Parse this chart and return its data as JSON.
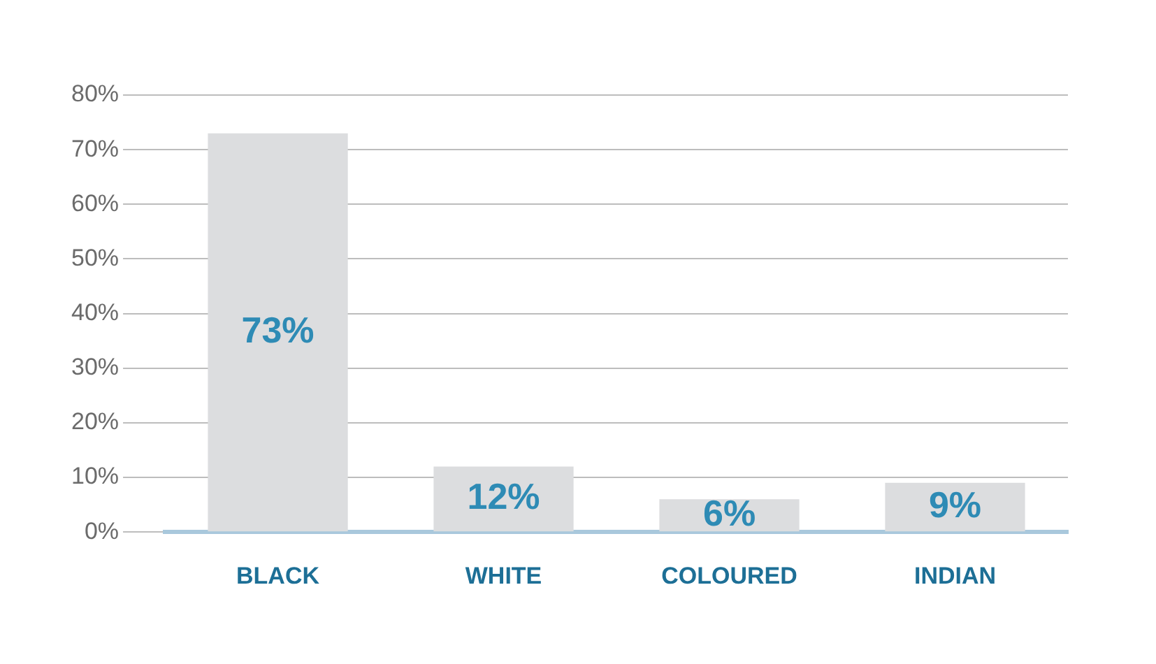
{
  "chart_data": {
    "type": "bar",
    "categories": [
      "BLACK",
      "WHITE",
      "COLOURED",
      "INDIAN"
    ],
    "values": [
      73,
      12,
      6,
      9
    ],
    "color": "#dcdddf",
    "value_labels": [
      "73%",
      "12%",
      "6%",
      "9%"
    ],
    "ylim": [
      0,
      80
    ],
    "yticks": [
      {
        "value": 0,
        "label": "0%"
      },
      {
        "value": 10,
        "label": "10%"
      },
      {
        "value": 20,
        "label": "20%"
      },
      {
        "value": 30,
        "label": "30%"
      },
      {
        "value": 40,
        "label": "40%"
      },
      {
        "value": 50,
        "label": "50%"
      },
      {
        "value": 60,
        "label": "60%"
      },
      {
        "value": 70,
        "label": "70%"
      },
      {
        "value": 80,
        "label": "80%"
      }
    ],
    "grid": "y",
    "legend": false
  }
}
